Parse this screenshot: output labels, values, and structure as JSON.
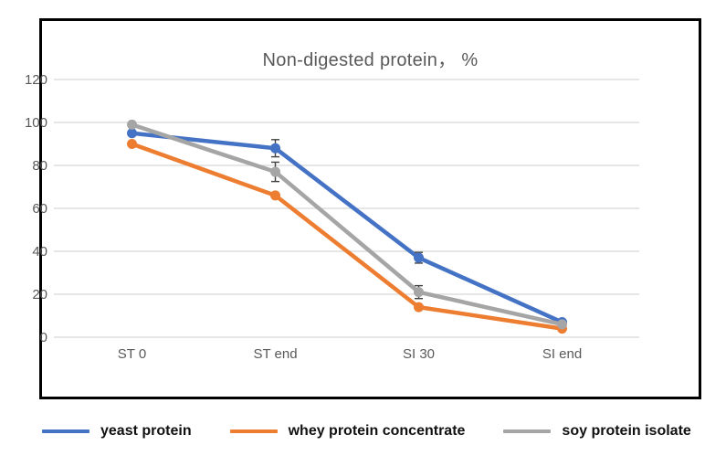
{
  "chart_data": {
    "type": "line",
    "title": "Non-digested protein， %",
    "categories": [
      "ST 0",
      "ST end",
      "SI 30",
      "SI end"
    ],
    "series": [
      {
        "name": "yeast protein",
        "color": "#4472C4",
        "values": [
          95,
          88,
          37,
          7
        ],
        "error_bars": [
          0,
          4,
          2.5,
          0
        ]
      },
      {
        "name": "whey protein concentrate",
        "color": "#ED7D31",
        "values": [
          90,
          66,
          14,
          4
        ],
        "error_bars": [
          0,
          0,
          0,
          0
        ]
      },
      {
        "name": "soy protein isolate",
        "color": "#A5A5A5",
        "values": [
          99,
          77,
          21,
          6
        ],
        "error_bars": [
          0,
          4.5,
          3,
          0
        ]
      }
    ],
    "ylim": [
      0,
      120
    ],
    "yticks": [
      0,
      20,
      40,
      60,
      80,
      100,
      120
    ],
    "grid": true,
    "legend_position": "bottom",
    "gridline_color": "#D6D6D6",
    "axis_text_color": "#595959",
    "error_bar_color": "#404040"
  }
}
